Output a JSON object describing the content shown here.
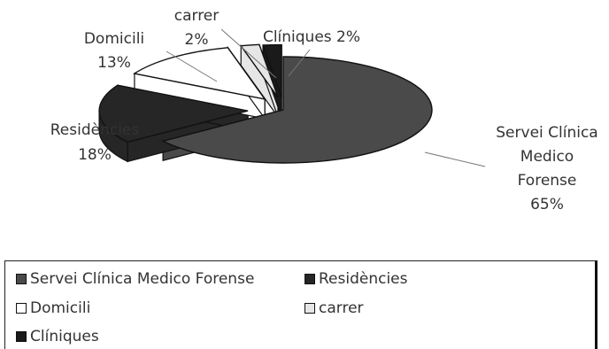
{
  "chart_data": {
    "type": "pie",
    "title": "",
    "slices": [
      {
        "name": "Servei Clínica Medico Forense",
        "value": 65,
        "color": "#4a4a4a",
        "label_lines": [
          "Servei Clínica",
          "Medico",
          "Forense",
          "65%"
        ]
      },
      {
        "name": "Residències",
        "value": 18,
        "color": "#262626",
        "label_lines": [
          "Residències",
          "18%"
        ]
      },
      {
        "name": "Domicili",
        "value": 13,
        "color": "#ffffff",
        "label_lines": [
          "Domicili",
          "13%"
        ]
      },
      {
        "name": "carrer",
        "value": 2,
        "color": "#e6e6e6",
        "label_lines": [
          "carrer",
          "2%"
        ]
      },
      {
        "name": "Clíniques",
        "value": 2,
        "color": "#1a1a1a",
        "label_lines": [
          "Clíniques 2%"
        ]
      }
    ],
    "legend_position": "bottom",
    "exploded": true,
    "three_d": true
  },
  "legend": {
    "items": [
      {
        "label": "Servei Clínica Medico Forense",
        "color": "#4a4a4a"
      },
      {
        "label": "Residències",
        "color": "#262626"
      },
      {
        "label": "Domicili",
        "color": "#ffffff"
      },
      {
        "label": "carrer",
        "color": "#e6e6e6"
      },
      {
        "label": "Clíniques",
        "color": "#1a1a1a"
      }
    ]
  }
}
